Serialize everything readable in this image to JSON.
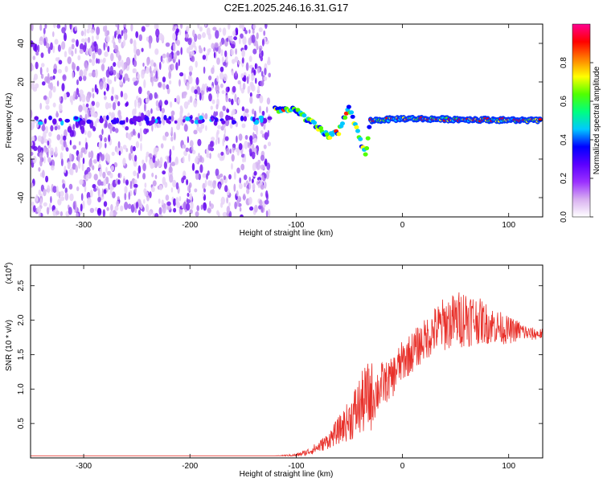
{
  "title": "C2E1.2025.246.16.31.G17",
  "chart_data": [
    {
      "type": "heatmap",
      "name": "spectrogram",
      "xlabel": "Height of straight line (km)",
      "ylabel": "Frequency (Hz)",
      "xlim": [
        -350,
        132
      ],
      "ylim": [
        -50,
        50
      ],
      "xticks": [
        -300,
        -200,
        -100,
        0,
        100
      ],
      "yticks": [
        -40,
        -20,
        0,
        20,
        40
      ],
      "xtick_labels": [
        "-300",
        "-200",
        "-100",
        "0",
        "100"
      ],
      "ytick_labels": [
        "-40",
        "-20",
        "0",
        "20",
        "40"
      ],
      "noise_region_x": [
        -350,
        -125
      ],
      "signal_track": [
        {
          "x": -120,
          "f": 6
        },
        {
          "x": -100,
          "f": 5
        },
        {
          "x": -90,
          "f": 1
        },
        {
          "x": -80,
          "f": -4
        },
        {
          "x": -70,
          "f": -8
        },
        {
          "x": -60,
          "f": -6
        },
        {
          "x": -55,
          "f": 2
        },
        {
          "x": -50,
          "f": 6
        },
        {
          "x": -45,
          "f": -2
        },
        {
          "x": -40,
          "f": -10
        },
        {
          "x": -35,
          "f": -18
        },
        {
          "x": -30,
          "f": 0
        },
        {
          "x": 0,
          "f": 1
        },
        {
          "x": 130,
          "f": 0
        }
      ],
      "colorbar": {
        "label": "Normalized spectral amplitude",
        "range": [
          0,
          1
        ],
        "ticks": [
          0,
          0.2,
          0.4,
          0.6,
          0.8
        ],
        "tick_labels": [
          "0.0",
          "0.2",
          "0.4",
          "0.6",
          "0.8"
        ],
        "colors": [
          "#ffffff",
          "#d8b0f0",
          "#9b30ff",
          "#5a00ff",
          "#0000ff",
          "#00c8ff",
          "#00ff80",
          "#50ff00",
          "#ffff00",
          "#ff8000",
          "#ff0000",
          "#ff0090"
        ]
      }
    },
    {
      "type": "line",
      "name": "snr",
      "xlabel": "Height of straight line (km)",
      "ylabel": "SNR (10 * v/v)",
      "scale_label": "(x10",
      "scale_exp": "4",
      "scale_close": ")",
      "xlim": [
        -350,
        132
      ],
      "ylim": [
        0,
        2.8
      ],
      "xticks": [
        -300,
        -200,
        -100,
        0,
        100
      ],
      "yticks": [
        0.5,
        1.0,
        1.5,
        2.0,
        2.5
      ],
      "xtick_labels": [
        "-300",
        "-200",
        "-100",
        "0",
        "100"
      ],
      "ytick_labels": [
        "0.5",
        "1.0",
        "1.5",
        "2.0",
        "2.5"
      ],
      "color": "#e8302a",
      "series": [
        {
          "name": "SNR",
          "x": [
            -350,
            -300,
            -250,
            -200,
            -150,
            -120,
            -100,
            -90,
            -80,
            -70,
            -60,
            -50,
            -45,
            -40,
            -35,
            -30,
            -25,
            -20,
            -15,
            -10,
            -5,
            0,
            10,
            20,
            30,
            40,
            50,
            60,
            70,
            80,
            90,
            100,
            110,
            120,
            130
          ],
          "y": [
            0.03,
            0.03,
            0.03,
            0.03,
            0.03,
            0.03,
            0.04,
            0.08,
            0.15,
            0.25,
            0.4,
            0.55,
            0.65,
            0.75,
            0.85,
            0.9,
            0.95,
            1.05,
            1.1,
            1.15,
            1.3,
            1.4,
            1.55,
            1.7,
            1.85,
            1.95,
            2.0,
            2.05,
            2.0,
            1.95,
            1.9,
            1.85,
            1.85,
            1.8,
            1.8
          ],
          "spread": [
            0,
            0,
            0,
            0,
            0,
            0,
            0.02,
            0.05,
            0.08,
            0.12,
            0.2,
            0.3,
            0.4,
            0.45,
            0.5,
            0.55,
            0.35,
            0.35,
            0.3,
            0.3,
            0.3,
            0.3,
            0.3,
            0.3,
            0.35,
            0.4,
            0.4,
            0.45,
            0.35,
            0.3,
            0.25,
            0.2,
            0.15,
            0.1,
            0.08
          ]
        }
      ]
    }
  ]
}
